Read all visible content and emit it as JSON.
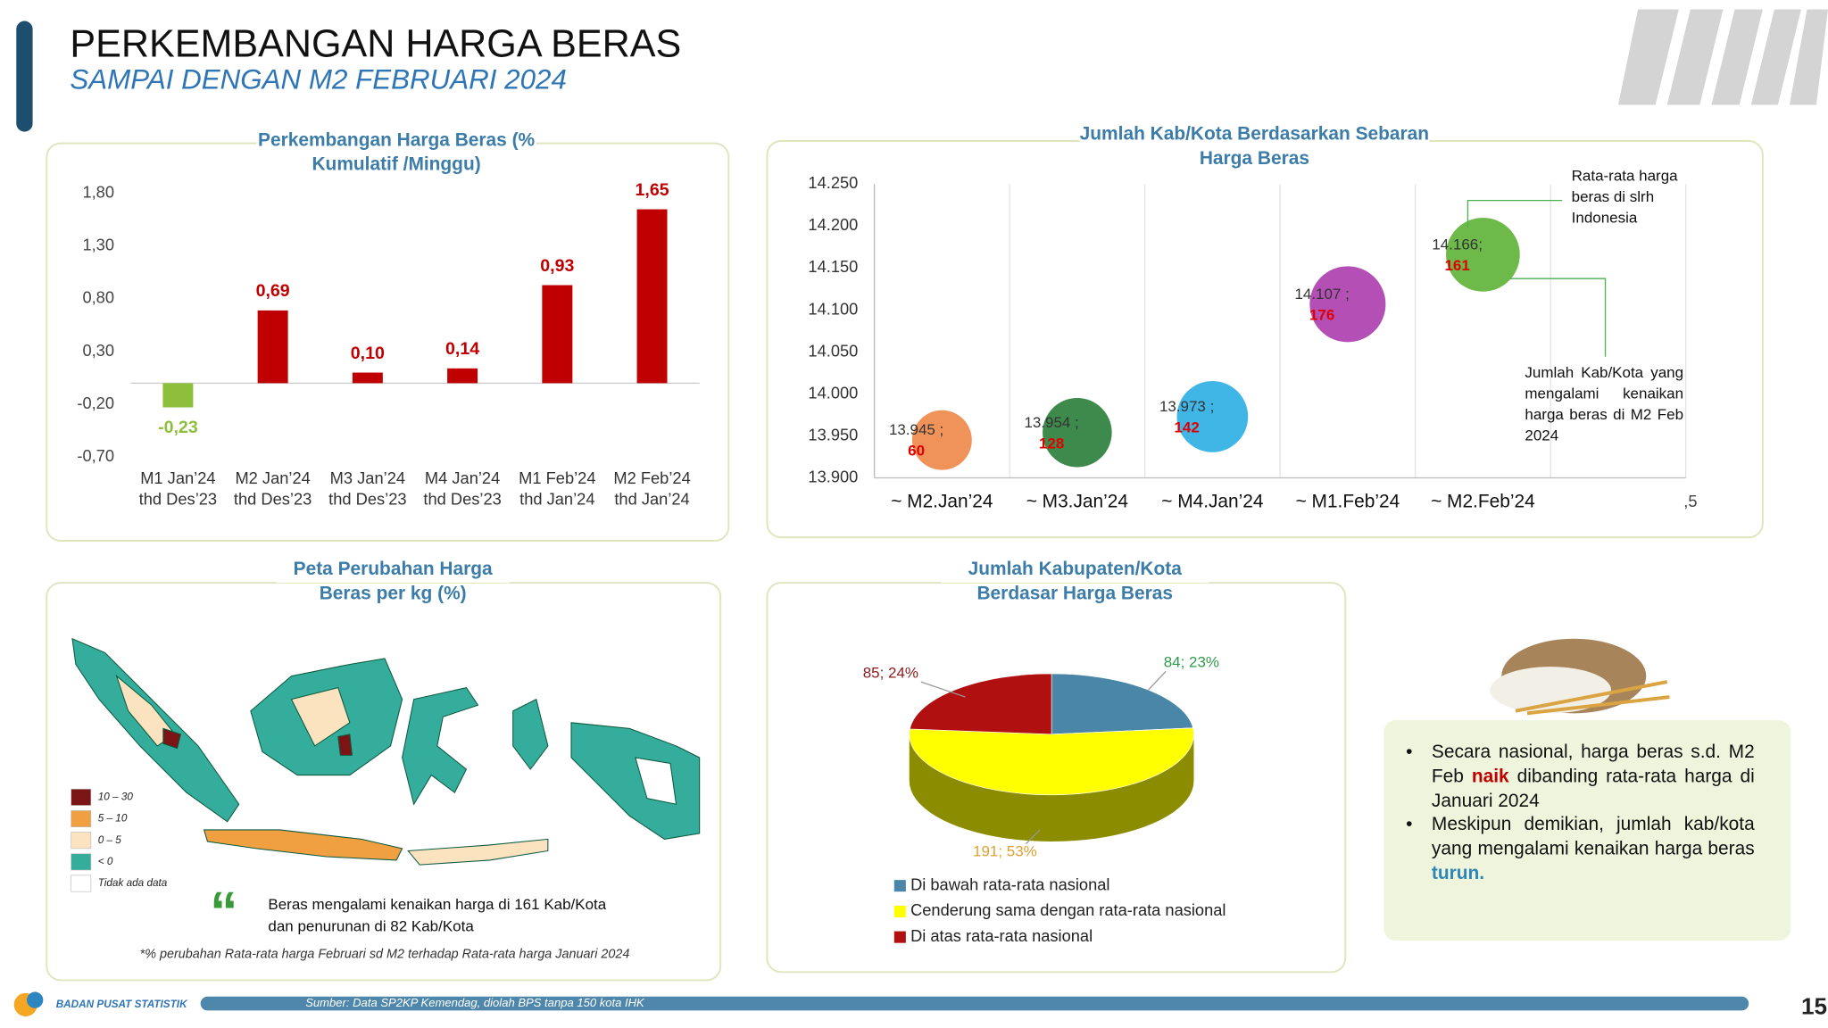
{
  "header": {
    "title": "PERKEMBANGAN HARGA BERAS",
    "subtitle": "SAMPAI DENGAN M2 FEBRUARI 2024"
  },
  "chart_data": [
    {
      "type": "bar",
      "title": "Perkembangan Harga Beras (% Kumulatif /Minggu)",
      "categories": [
        "M1 Jan’24 thd Des’23",
        "M2 Jan’24 thd Des’23",
        "M3 Jan’24 thd Des’23",
        "M4 Jan’24 thd Des’23",
        "M1 Feb’24 thd Jan’24",
        "M2 Feb’24 thd Jan’24"
      ],
      "values": [
        -0.23,
        0.69,
        0.1,
        0.14,
        0.93,
        1.65
      ],
      "value_labels": [
        "-0,23",
        "0,69",
        "0,10",
        "0,14",
        "0,93",
        "1,65"
      ],
      "colors": [
        "#8dbf3c",
        "#c00000",
        "#c00000",
        "#c00000",
        "#c00000",
        "#c00000"
      ],
      "ylim": [
        -0.7,
        1.8
      ],
      "yticks": [
        {
          "value": -0.7,
          "label": "-0,70"
        },
        {
          "value": -0.2,
          "label": "-0,20"
        },
        {
          "value": 0.3,
          "label": "0,30"
        },
        {
          "value": 0.8,
          "label": "0,80"
        },
        {
          "value": 1.3,
          "label": "1,30"
        },
        {
          "value": 1.8,
          "label": "1,80"
        }
      ],
      "grid": false
    },
    {
      "type": "bubble",
      "title": "Jumlah Kab/Kota Berdasarkan Sebaran Harga Beras",
      "categories": [
        "~ M2.Jan’24",
        "~ M3.Jan’24",
        "~ M4.Jan’24",
        "~ M1.Feb’24",
        "~ M2.Feb’24"
      ],
      "values": [
        13945,
        13954,
        13973,
        14107,
        14166
      ],
      "value_labels": [
        "13.945 ;",
        "13.954 ;",
        "13.973 ;",
        "14.107 ;",
        "14.166;"
      ],
      "sizes": [
        60,
        128,
        142,
        176,
        161
      ],
      "colors": [
        "#f0935a",
        "#3d8a4c",
        "#3fb6e6",
        "#b34fb5",
        "#6dba4a"
      ],
      "ylim": [
        13900,
        14250
      ],
      "yticks": [
        {
          "value": 13900,
          "label": "13.900"
        },
        {
          "value": 13950,
          "label": "13.950"
        },
        {
          "value": 14000,
          "label": "14.000"
        },
        {
          "value": 14050,
          "label": "14.050"
        },
        {
          "value": 14100,
          "label": "14.100"
        },
        {
          "value": 14150,
          "label": "14.150"
        },
        {
          "value": 14200,
          "label": "14.200"
        },
        {
          "value": 14250,
          "label": "14.250"
        }
      ],
      "annotations": [
        "Rata-rata harga beras di slrh Indonesia",
        "Jumlah Kab/Kota yang mengalami kenaikan harga beras di M2 Feb 2024"
      ],
      "x_axis_extra_label": ",5",
      "grid": true
    },
    {
      "type": "pie",
      "title": "Jumlah Kabupaten/Kota Berdasar Harga Beras",
      "categories": [
        "Di bawah rata-rata nasional",
        "Cenderung sama dengan rata-rata nasional",
        "Di atas rata-rata nasional"
      ],
      "values": [
        84,
        191,
        85
      ],
      "value_labels": [
        "84; 23%",
        "191; 53%",
        "85; 24%"
      ],
      "colors": [
        "#4a86a8",
        "#ffff00",
        "#b01010"
      ],
      "legend": "bottom"
    }
  ],
  "map": {
    "title": "Peta Perubahan Harga Beras per kg (%)",
    "legend": [
      {
        "label": "10 – 30",
        "color": "#7b1414"
      },
      {
        "label": "5 – 10",
        "color": "#f0a040"
      },
      {
        "label": "0 – 5",
        "color": "#fbe3c0"
      },
      {
        "label": "< 0",
        "color": "#35ad9c"
      },
      {
        "label": "Tidak ada data",
        "color": "#ffffff"
      }
    ],
    "quote": "Beras mengalami kenaikan harga di 161 Kab/Kota dan penurunan di 82 Kab/Kota",
    "footnote": "*% perubahan Rata-rata harga Februari sd M2 terhadap Rata-rata harga Januari 2024"
  },
  "summary": {
    "bullets": [
      [
        {
          "text": "Secara nasional, harga beras s.d. M2 Feb "
        },
        {
          "text": "naik",
          "color": "#c00000"
        },
        {
          "text": " dibanding rata-rata harga di Januari 2024"
        }
      ],
      [
        {
          "text": "Meskipun demikian, jumlah kab/kota yang mengalami kenaikan harga beras "
        },
        {
          "text": "turun.",
          "color": "#2e86b8"
        }
      ]
    ]
  },
  "footer": {
    "org": "BADAN PUSAT STATISTIK",
    "source": "Sumber: Data SP2KP Kemendag, diolah BPS tanpa 150 kota IHK",
    "page": "15"
  }
}
